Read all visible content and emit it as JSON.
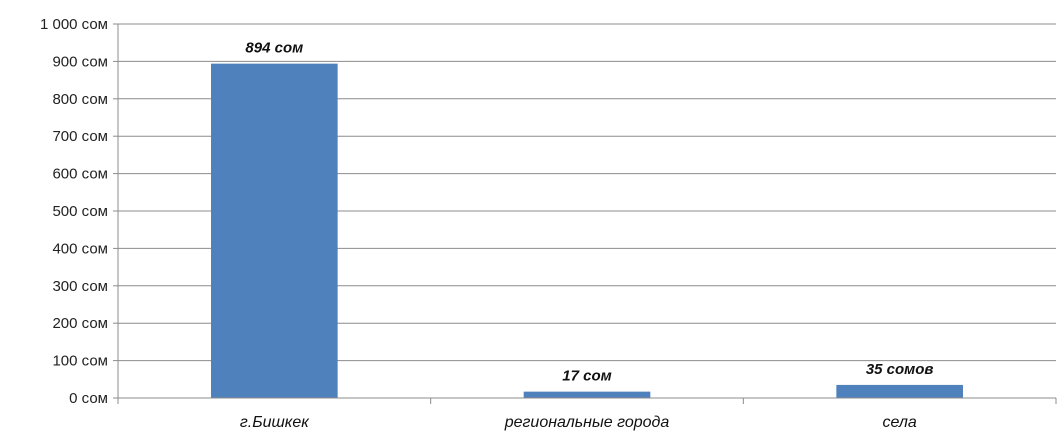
{
  "chart_data": {
    "type": "bar",
    "categories": [
      "г.Бишкек",
      "региональные города",
      "села"
    ],
    "values": [
      894,
      17,
      35
    ],
    "data_labels": [
      "894 сом",
      "17 сом",
      "35 сомов"
    ],
    "ylim": [
      0,
      1000
    ],
    "yticks": [
      0,
      100,
      200,
      300,
      400,
      500,
      600,
      700,
      800,
      900,
      1000
    ],
    "ytick_labels": [
      "0 сом",
      "100 сом",
      "200 сом",
      "300 сом",
      "400 сом",
      "500 сом",
      "600 сом",
      "700 сом",
      "800 сом",
      "900 сом",
      "1 000 сом"
    ],
    "grid": true,
    "legend": "none",
    "bar_color": "#4F81BD",
    "grid_color": "#8C8C8C"
  }
}
